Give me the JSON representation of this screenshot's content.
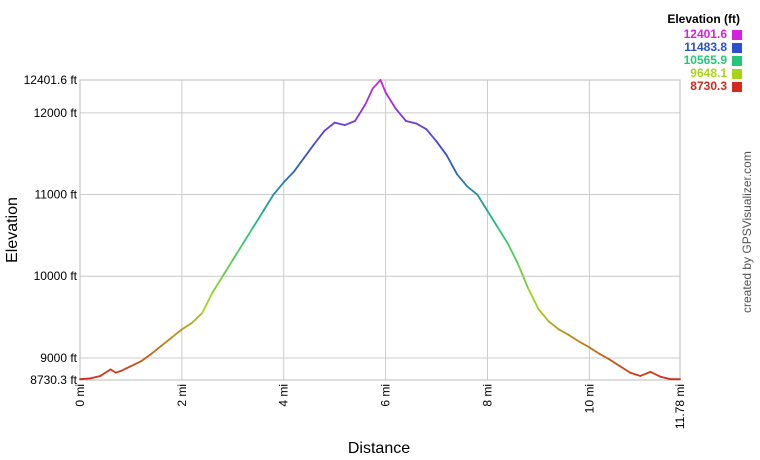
{
  "chart_data": {
    "type": "line",
    "xlabel": "Distance",
    "ylabel": "Elevation",
    "xlim": [
      0,
      11.78
    ],
    "ylim": [
      8730.3,
      12401.6
    ],
    "x_ticks": [
      {
        "value": 0,
        "label": "0 mi"
      },
      {
        "value": 2,
        "label": "2 mi"
      },
      {
        "value": 4,
        "label": "4 mi"
      },
      {
        "value": 6,
        "label": "6 mi"
      },
      {
        "value": 8,
        "label": "8 mi"
      },
      {
        "value": 10,
        "label": "10 mi"
      },
      {
        "value": 11.78,
        "label": "11.78 mi"
      }
    ],
    "y_ticks": [
      {
        "value": 8730.3,
        "label": "8730.3 ft"
      },
      {
        "value": 9000,
        "label": "9000 ft"
      },
      {
        "value": 10000,
        "label": "10000 ft"
      },
      {
        "value": 11000,
        "label": "11000 ft"
      },
      {
        "value": 12000,
        "label": "12000 ft"
      },
      {
        "value": 12401.6,
        "label": "12401.6 ft"
      }
    ],
    "grid": true,
    "legend": {
      "title": "Elevation (ft)",
      "entries": [
        {
          "label": "12401.6",
          "color": "#d620e0"
        },
        {
          "label": "11483.8",
          "color": "#2a4fd0"
        },
        {
          "label": "10565.9",
          "color": "#22c878"
        },
        {
          "label": "9648.1",
          "color": "#a8d418"
        },
        {
          "label": "8730.3",
          "color": "#d42a1a"
        }
      ],
      "placement": "top-right"
    },
    "series": [
      {
        "x": [
          0,
          0.2,
          0.4,
          0.6,
          0.7,
          0.8,
          1.0,
          1.2,
          1.4,
          1.6,
          1.8,
          2.0,
          2.2,
          2.4,
          2.6,
          2.8,
          3.0,
          3.2,
          3.4,
          3.6,
          3.8,
          4.0,
          4.2,
          4.4,
          4.6,
          4.8,
          5.0,
          5.2,
          5.4,
          5.6,
          5.75,
          5.9,
          6.0,
          6.2,
          6.4,
          6.6,
          6.8,
          7.0,
          7.2,
          7.4,
          7.6,
          7.8,
          8.0,
          8.2,
          8.4,
          8.6,
          8.8,
          9.0,
          9.2,
          9.4,
          9.6,
          9.8,
          10.0,
          10.2,
          10.4,
          10.6,
          10.8,
          11.0,
          11.2,
          11.4,
          11.6,
          11.78
        ],
        "y": [
          8740,
          8750,
          8780,
          8860,
          8820,
          8840,
          8900,
          8960,
          9050,
          9150,
          9250,
          9350,
          9430,
          9550,
          9800,
          10000,
          10200,
          10400,
          10600,
          10800,
          11000,
          11150,
          11280,
          11450,
          11620,
          11780,
          11880,
          11850,
          11900,
          12100,
          12300,
          12401.6,
          12250,
          12050,
          11900,
          11870,
          11800,
          11650,
          11480,
          11250,
          11100,
          11000,
          10800,
          10600,
          10400,
          10150,
          9850,
          9600,
          9450,
          9350,
          9280,
          9200,
          9130,
          9050,
          8980,
          8900,
          8820,
          8780,
          8830,
          8770,
          8740,
          8740
        ]
      }
    ]
  },
  "credit": "created by GPSVisualizer.com"
}
